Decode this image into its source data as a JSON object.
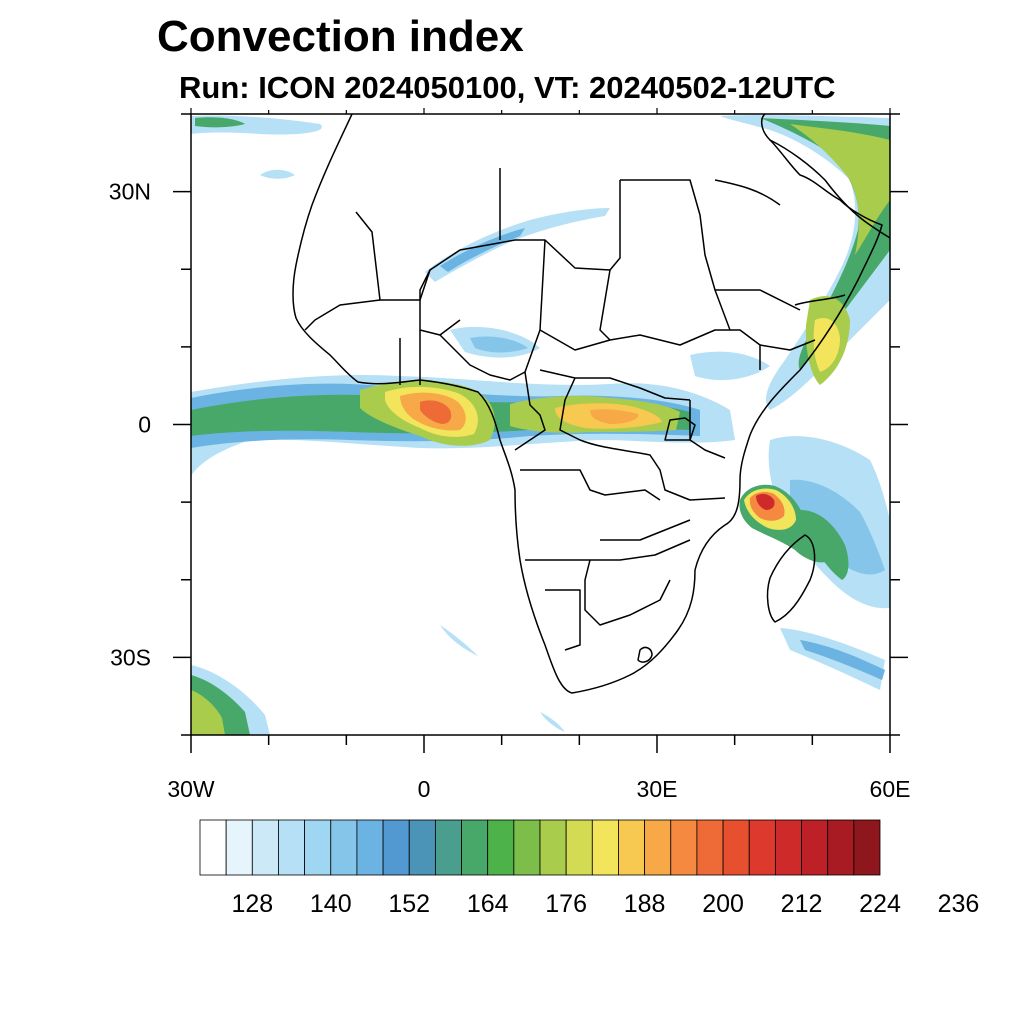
{
  "title": "Convection index",
  "subtitle": "Run: ICON 2024050100,  VT: 20240502-12UTC",
  "map": {
    "lon_range": [
      -30,
      60
    ],
    "lat_range": [
      -40,
      40
    ],
    "x_ticks": [
      {
        "value": -30,
        "label": "30W"
      },
      {
        "value": 0,
        "label": "0"
      },
      {
        "value": 30,
        "label": "30E"
      },
      {
        "value": 60,
        "label": "60E"
      }
    ],
    "y_ticks": [
      {
        "value": 30,
        "label": "30N"
      },
      {
        "value": 0,
        "label": "0"
      },
      {
        "value": -30,
        "label": "30S"
      }
    ],
    "minor_lon_step": 10,
    "minor_lat_step": 10
  },
  "colorbar": {
    "colors": [
      "#ffffff",
      "#e6f5fc",
      "#cce9f7",
      "#b5e0f5",
      "#9fd6f2",
      "#85c5ea",
      "#6bb3e2",
      "#5299d2",
      "#4c93b8",
      "#4a9e8e",
      "#48a86a",
      "#4db24a",
      "#7dbd4a",
      "#a9cc4c",
      "#d2db52",
      "#f2e55c",
      "#f7c951",
      "#f7a948",
      "#f4893f",
      "#ee6a36",
      "#e6502f",
      "#dd3a2d",
      "#cf2a2a",
      "#bd2026",
      "#a81b22",
      "#8e171d"
    ],
    "labels": [
      {
        "after_box": 2,
        "text": "128"
      },
      {
        "after_box": 5,
        "text": "140"
      },
      {
        "after_box": 8,
        "text": "152"
      },
      {
        "after_box": 11,
        "text": "164"
      },
      {
        "after_box": 14,
        "text": "176"
      },
      {
        "after_box": 17,
        "text": "188"
      },
      {
        "after_box": 20,
        "text": "200"
      },
      {
        "after_box": 23,
        "text": "212"
      },
      {
        "after_box": 26,
        "text": "224"
      },
      {
        "after_box": 29,
        "text": "236"
      }
    ]
  },
  "icons": {
    "map": "africa-convection-map"
  }
}
